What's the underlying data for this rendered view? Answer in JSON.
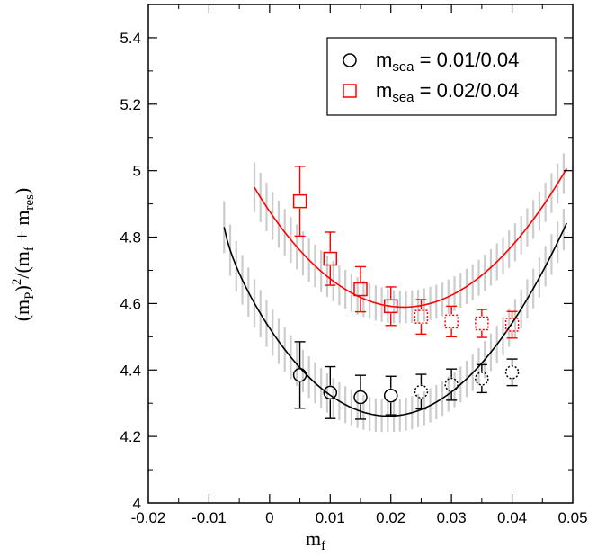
{
  "chart_data": {
    "type": "scatter",
    "title": "",
    "xlabel": "m_f",
    "ylabel": "(m_P)^2/(m_f + m_res)",
    "xlim": [
      -0.02,
      0.05
    ],
    "ylim": [
      4.0,
      5.5
    ],
    "x_ticks": [
      "-0.02",
      "-0.01",
      "0",
      "0.01",
      "0.02",
      "0.03",
      "0.04",
      "0.05"
    ],
    "y_ticks": [
      "4",
      "4.2",
      "4.4",
      "4.6",
      "4.8",
      "5",
      "5.2",
      "5.4"
    ],
    "legend_position": "top-right",
    "series": [
      {
        "name": "m_sea = 0.01/0.04",
        "legend_main": "m",
        "legend_sub": "sea",
        "legend_rest": " = 0.01/0.04",
        "color": "#000000",
        "marker": "circle",
        "points": [
          {
            "x": 0.005,
            "y": 4.385,
            "err": 0.1,
            "fitted": true
          },
          {
            "x": 0.01,
            "y": 4.332,
            "err": 0.078,
            "fitted": true
          },
          {
            "x": 0.015,
            "y": 4.318,
            "err": 0.066,
            "fitted": true
          },
          {
            "x": 0.02,
            "y": 4.323,
            "err": 0.058,
            "fitted": true
          },
          {
            "x": 0.025,
            "y": 4.335,
            "err": 0.052,
            "fitted": false
          },
          {
            "x": 0.03,
            "y": 4.356,
            "err": 0.047,
            "fitted": false
          },
          {
            "x": 0.035,
            "y": 4.374,
            "err": 0.042,
            "fitted": false
          },
          {
            "x": 0.04,
            "y": 4.393,
            "err": 0.04,
            "fitted": false
          }
        ],
        "fit": {
          "x0": 0.0195,
          "y0": 4.257,
          "a": 670,
          "b": 0.000127,
          "xmin": -0.0075,
          "xmax": 0.049
        }
      },
      {
        "name": "m_sea = 0.02/0.04",
        "legend_main": "m",
        "legend_sub": "sea",
        "legend_rest": " = 0.02/0.04",
        "color": "#ff0000",
        "marker": "square",
        "points": [
          {
            "x": 0.005,
            "y": 4.908,
            "err": 0.105,
            "fitted": true
          },
          {
            "x": 0.01,
            "y": 4.735,
            "err": 0.08,
            "fitted": true
          },
          {
            "x": 0.015,
            "y": 4.643,
            "err": 0.068,
            "fitted": true
          },
          {
            "x": 0.02,
            "y": 4.592,
            "err": 0.058,
            "fitted": true
          },
          {
            "x": 0.025,
            "y": 4.56,
            "err": 0.052,
            "fitted": false
          },
          {
            "x": 0.03,
            "y": 4.546,
            "err": 0.046,
            "fitted": false
          },
          {
            "x": 0.035,
            "y": 4.54,
            "err": 0.042,
            "fitted": false
          },
          {
            "x": 0.04,
            "y": 4.536,
            "err": 0.04,
            "fitted": false
          }
        ],
        "fit": {
          "x0": 0.022,
          "y0": 4.585,
          "a": 575,
          "b": 0.000127,
          "xmin": -0.0025,
          "xmax": 0.049
        }
      }
    ],
    "error_bands": {
      "color": "#cccccc",
      "description": "vertical error band lines around each fit curve"
    }
  }
}
